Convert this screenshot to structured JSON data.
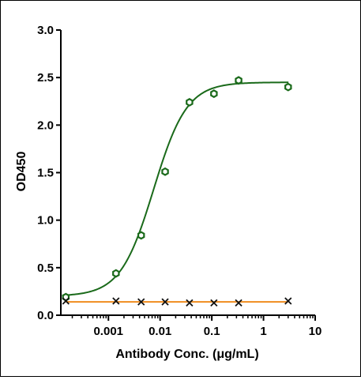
{
  "chart_data": {
    "type": "scatter",
    "title": "",
    "xlabel": "Antibody Conc. (μg/mL)",
    "ylabel": "OD450",
    "x_scale": "log",
    "xlim": [
      0.00012,
      10
    ],
    "ylim": [
      0,
      3.0
    ],
    "x_ticks": [
      {
        "value": 0.001,
        "label": "0.001"
      },
      {
        "value": 0.01,
        "label": "0.01"
      },
      {
        "value": 0.1,
        "label": "0.1"
      },
      {
        "value": 1,
        "label": "1"
      },
      {
        "value": 10,
        "label": "10"
      }
    ],
    "y_ticks": [
      {
        "value": 0,
        "label": "0.0"
      },
      {
        "value": 0.5,
        "label": "0.5"
      },
      {
        "value": 1.0,
        "label": "1.0"
      },
      {
        "value": 1.5,
        "label": "1.5"
      },
      {
        "value": 2.0,
        "label": "2.0"
      },
      {
        "value": 2.5,
        "label": "2.5"
      },
      {
        "value": 3.0,
        "label": "3.0"
      }
    ],
    "grid": false,
    "legend": "none",
    "series": [
      {
        "color": "#1a6a1a",
        "marker": "hexagon-open",
        "fit": "sigmoid",
        "fit_params": {
          "bottom": 0.2,
          "top": 2.45,
          "ec50": 0.0075,
          "hill": 1.35
        },
        "points": [
          {
            "x": 0.00015,
            "y": 0.19
          },
          {
            "x": 0.0014,
            "y": 0.44
          },
          {
            "x": 0.0043,
            "y": 0.84
          },
          {
            "x": 0.0125,
            "y": 1.51
          },
          {
            "x": 0.037,
            "y": 2.24
          },
          {
            "x": 0.11,
            "y": 2.33
          },
          {
            "x": 0.33,
            "y": 2.47
          },
          {
            "x": 3.0,
            "y": 2.4
          }
        ]
      },
      {
        "color": "#f08c1e",
        "marker": "x",
        "fit": "flat",
        "fit_value": 0.14,
        "points": [
          {
            "x": 0.00015,
            "y": 0.15
          },
          {
            "x": 0.0014,
            "y": 0.15
          },
          {
            "x": 0.0043,
            "y": 0.14
          },
          {
            "x": 0.0125,
            "y": 0.14
          },
          {
            "x": 0.037,
            "y": 0.13
          },
          {
            "x": 0.11,
            "y": 0.13
          },
          {
            "x": 0.33,
            "y": 0.13
          },
          {
            "x": 3.0,
            "y": 0.15
          }
        ]
      }
    ]
  }
}
